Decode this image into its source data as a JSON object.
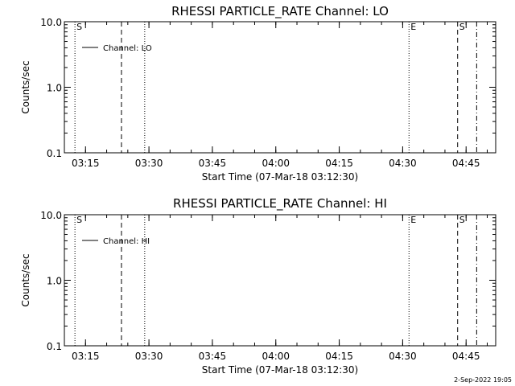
{
  "chart_data": [
    {
      "type": "line",
      "title": "RHESSI PARTICLE_RATE Channel: LO",
      "xlabel": "Start Time (07-Mar-18 03:12:30)",
      "ylabel": "Counts/sec",
      "y_scale": "log",
      "ylim": [
        0.1,
        10.0
      ],
      "y_ticks": [
        "0.1",
        "1.0",
        "10.0"
      ],
      "x_ticks": [
        "03:15",
        "03:30",
        "03:45",
        "04:00",
        "04:15",
        "04:30",
        "04:45"
      ],
      "legend": {
        "label": "Channel: LO",
        "placement": "top-left"
      },
      "series": [],
      "markers": [
        {
          "label": "S",
          "time": "03:12:30",
          "style": "dotted"
        },
        {
          "label": "",
          "time": "03:23:30",
          "style": "dashed"
        },
        {
          "label": "",
          "time": "03:29:00",
          "style": "dotted"
        },
        {
          "label": "E",
          "time": "04:31:30",
          "style": "dotted"
        },
        {
          "label": "S",
          "time": "04:43:00",
          "style": "dashed"
        },
        {
          "label": "",
          "time": "04:47:30",
          "style": "dashdot"
        }
      ]
    },
    {
      "type": "line",
      "title": "RHESSI PARTICLE_RATE Channel: HI",
      "xlabel": "Start Time (07-Mar-18 03:12:30)",
      "ylabel": "Counts/sec",
      "y_scale": "log",
      "ylim": [
        0.1,
        10.0
      ],
      "y_ticks": [
        "0.1",
        "1.0",
        "10.0"
      ],
      "x_ticks": [
        "03:15",
        "03:30",
        "03:45",
        "04:00",
        "04:15",
        "04:30",
        "04:45"
      ],
      "legend": {
        "label": "Channel: HI",
        "placement": "top-left"
      },
      "series": [],
      "markers": [
        {
          "label": "S",
          "time": "03:12:30",
          "style": "dotted"
        },
        {
          "label": "",
          "time": "03:23:30",
          "style": "dashed"
        },
        {
          "label": "",
          "time": "03:29:00",
          "style": "dotted"
        },
        {
          "label": "E",
          "time": "04:31:30",
          "style": "dotted"
        },
        {
          "label": "S",
          "time": "04:43:00",
          "style": "dashed"
        },
        {
          "label": "",
          "time": "04:47:30",
          "style": "dashdot"
        }
      ]
    }
  ],
  "footer": {
    "timestamp": "2-Sep-2022 19:05"
  }
}
